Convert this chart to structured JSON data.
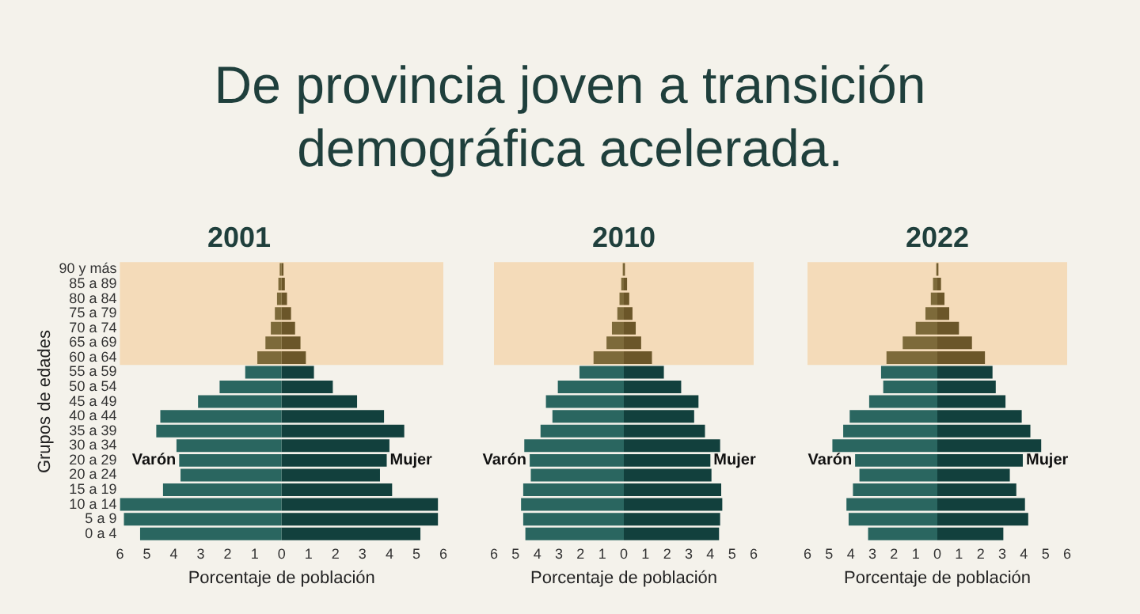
{
  "chart_data": [
    {
      "type": "other",
      "title": "De provincia joven a transición demográfica acelerada."
    },
    {
      "type": "bar",
      "title": "2001",
      "orientation": "horizontal",
      "stacked": true,
      "grid": false,
      "legend": false,
      "xlabel": "Porcentaje de población",
      "ylabel": "Grupos de edades",
      "categories": [
        "90 y más",
        "85 a 89",
        "80 a 84",
        "75 a 79",
        "70 a 74",
        "65 a 69",
        "60 a 64",
        "55 a 59",
        "50 a 54",
        "45 a 49",
        "40 a 44",
        "35 a 39",
        "30 a 34",
        "20 a 29",
        "20 a 24",
        "15 a 19",
        "10 a 14",
        "5 a 9",
        "0 a 4"
      ],
      "xlim": [
        -6,
        6
      ],
      "xticks": [
        {
          "value": -6,
          "label": "6"
        },
        {
          "value": -5,
          "label": "5"
        },
        {
          "value": -4,
          "label": "4"
        },
        {
          "value": -3,
          "label": "3"
        },
        {
          "value": -2,
          "label": "2"
        },
        {
          "value": -1,
          "label": "1"
        },
        0,
        1,
        2,
        3,
        4,
        5,
        6
      ],
      "bands": [
        {
          "axis": "y",
          "from": "90 y más",
          "to": "60 a 64",
          "color": "#f6a547"
        }
      ],
      "series": [
        {
          "name": "Varón",
          "colors": [
            "#7d6a3a",
            "#7d6a3a",
            "#7d6a3a",
            "#7d6a3a",
            "#7d6a3a",
            "#7d6a3a",
            "#7d6a3a",
            "#2a6660",
            "#2a6660",
            "#2a6660",
            "#2a6660",
            "#2a6660",
            "#2a6660",
            "#2a6660",
            "#2a6660",
            "#2a6660",
            "#2a6660",
            "#2a6660",
            "#2a6660"
          ],
          "values": [
            -0.07,
            -0.12,
            -0.17,
            -0.25,
            -0.4,
            -0.6,
            -0.9,
            -1.35,
            -2.3,
            -3.1,
            -4.5,
            -4.65,
            -3.9,
            -3.8,
            -3.75,
            -4.4,
            -6.0,
            -5.85,
            -5.25
          ]
        },
        {
          "name": "Mujer",
          "colors": [
            "#6b5629",
            "#6b5629",
            "#6b5629",
            "#6b5629",
            "#6b5629",
            "#6b5629",
            "#6b5629",
            "#12403d",
            "#12403d",
            "#12403d",
            "#12403d",
            "#12403d",
            "#12403d",
            "#12403d",
            "#12403d",
            "#12403d",
            "#12403d",
            "#12403d",
            "#12403d"
          ],
          "values": [
            0.07,
            0.12,
            0.2,
            0.35,
            0.5,
            0.7,
            0.9,
            1.2,
            1.9,
            2.8,
            3.8,
            4.55,
            4.0,
            3.9,
            3.65,
            4.1,
            5.8,
            5.8,
            5.15
          ]
        }
      ]
    },
    {
      "type": "bar",
      "title": "2010",
      "orientation": "horizontal",
      "stacked": true,
      "grid": false,
      "legend": false,
      "tick_labels": "x",
      "xlabel": "Porcentaje de población",
      "categories": [
        "90 y más",
        "85 a 89",
        "80 a 84",
        "75 a 79",
        "70 a 74",
        "65 a 69",
        "60 a 64",
        "55 a 59",
        "50 a 54",
        "45 a 49",
        "40 a 44",
        "35 a 39",
        "30 a 34",
        "20 a 29",
        "20 a 24",
        "15 a 19",
        "10 a 14",
        "5 a 9",
        "0 a 4"
      ],
      "xlim": [
        -6,
        6
      ],
      "xticks": [
        {
          "value": -6,
          "label": "6"
        },
        {
          "value": -5,
          "label": "5"
        },
        {
          "value": -4,
          "label": "4"
        },
        {
          "value": -3,
          "label": "3"
        },
        {
          "value": -2,
          "label": "2"
        },
        {
          "value": -1,
          "label": "1"
        },
        0,
        1,
        2,
        3,
        4,
        5,
        6
      ],
      "bands": [
        {
          "axis": "y",
          "from": "90 y más",
          "to": "60 a 64",
          "color": "#f6a547"
        }
      ],
      "series": [
        {
          "name": "Varón",
          "colors": [
            "#7d6a3a",
            "#7d6a3a",
            "#7d6a3a",
            "#7d6a3a",
            "#7d6a3a",
            "#7d6a3a",
            "#7d6a3a",
            "#2a6660",
            "#2a6660",
            "#2a6660",
            "#2a6660",
            "#2a6660",
            "#2a6660",
            "#2a6660",
            "#2a6660",
            "#2a6660",
            "#2a6660",
            "#2a6660",
            "#2a6660"
          ],
          "values": [
            -0.05,
            -0.12,
            -0.2,
            -0.3,
            -0.55,
            -0.8,
            -1.4,
            -2.05,
            -3.05,
            -3.6,
            -3.3,
            -3.85,
            -4.6,
            -4.35,
            -4.3,
            -4.65,
            -4.75,
            -4.65,
            -4.55
          ]
        },
        {
          "name": "Mujer",
          "colors": [
            "#6b5629",
            "#6b5629",
            "#6b5629",
            "#6b5629",
            "#6b5629",
            "#6b5629",
            "#6b5629",
            "#12403d",
            "#12403d",
            "#12403d",
            "#12403d",
            "#12403d",
            "#12403d",
            "#12403d",
            "#12403d",
            "#12403d",
            "#12403d",
            "#12403d",
            "#12403d"
          ],
          "values": [
            0.05,
            0.15,
            0.25,
            0.4,
            0.55,
            0.8,
            1.3,
            1.85,
            2.65,
            3.45,
            3.25,
            3.75,
            4.45,
            4.0,
            4.05,
            4.5,
            4.55,
            4.45,
            4.4
          ]
        }
      ]
    },
    {
      "type": "bar",
      "title": "2022",
      "orientation": "horizontal",
      "stacked": true,
      "grid": false,
      "legend": false,
      "tick_labels": "x",
      "xlabel": "Porcentaje de población",
      "categories": [
        "90 y más",
        "85 a 89",
        "80 a 84",
        "75 a 79",
        "70 a 74",
        "65 a 69",
        "60 a 64",
        "55 a 59",
        "50 a 54",
        "45 a 49",
        "40 a 44",
        "35 a 39",
        "30 a 34",
        "20 a 29",
        "20 a 24",
        "15 a 19",
        "10 a 14",
        "5 a 9",
        "0 a 4"
      ],
      "xlim": [
        -6,
        6
      ],
      "xticks": [
        {
          "value": -6,
          "label": "6"
        },
        {
          "value": -5,
          "label": "5"
        },
        {
          "value": -4,
          "label": "4"
        },
        {
          "value": -3,
          "label": "3"
        },
        {
          "value": -2,
          "label": "2"
        },
        {
          "value": -1,
          "label": "1"
        },
        0,
        1,
        2,
        3,
        4,
        5,
        6
      ],
      "bands": [
        {
          "axis": "y",
          "from": "90 y más",
          "to": "60 a 64",
          "color": "#f6a547"
        }
      ],
      "series": [
        {
          "name": "Varón",
          "colors": [
            "#7d6a3a",
            "#7d6a3a",
            "#7d6a3a",
            "#7d6a3a",
            "#7d6a3a",
            "#7d6a3a",
            "#7d6a3a",
            "#2a6660",
            "#2a6660",
            "#2a6660",
            "#2a6660",
            "#2a6660",
            "#2a6660",
            "#2a6660",
            "#2a6660",
            "#2a6660",
            "#2a6660",
            "#2a6660",
            "#2a6660"
          ],
          "values": [
            -0.05,
            -0.2,
            -0.3,
            -0.55,
            -1.0,
            -1.6,
            -2.35,
            -2.6,
            -2.5,
            -3.15,
            -4.05,
            -4.35,
            -4.85,
            -3.8,
            -3.6,
            -3.9,
            -4.2,
            -4.1,
            -3.2
          ]
        },
        {
          "name": "Mujer",
          "colors": [
            "#6b5629",
            "#6b5629",
            "#6b5629",
            "#6b5629",
            "#6b5629",
            "#6b5629",
            "#6b5629",
            "#12403d",
            "#12403d",
            "#12403d",
            "#12403d",
            "#12403d",
            "#12403d",
            "#12403d",
            "#12403d",
            "#12403d",
            "#12403d",
            "#12403d",
            "#12403d"
          ],
          "values": [
            0.05,
            0.17,
            0.33,
            0.55,
            1.0,
            1.6,
            2.2,
            2.55,
            2.7,
            3.15,
            3.9,
            4.3,
            4.8,
            3.95,
            3.35,
            3.65,
            4.05,
            4.2,
            3.05
          ]
        }
      ]
    }
  ]
}
